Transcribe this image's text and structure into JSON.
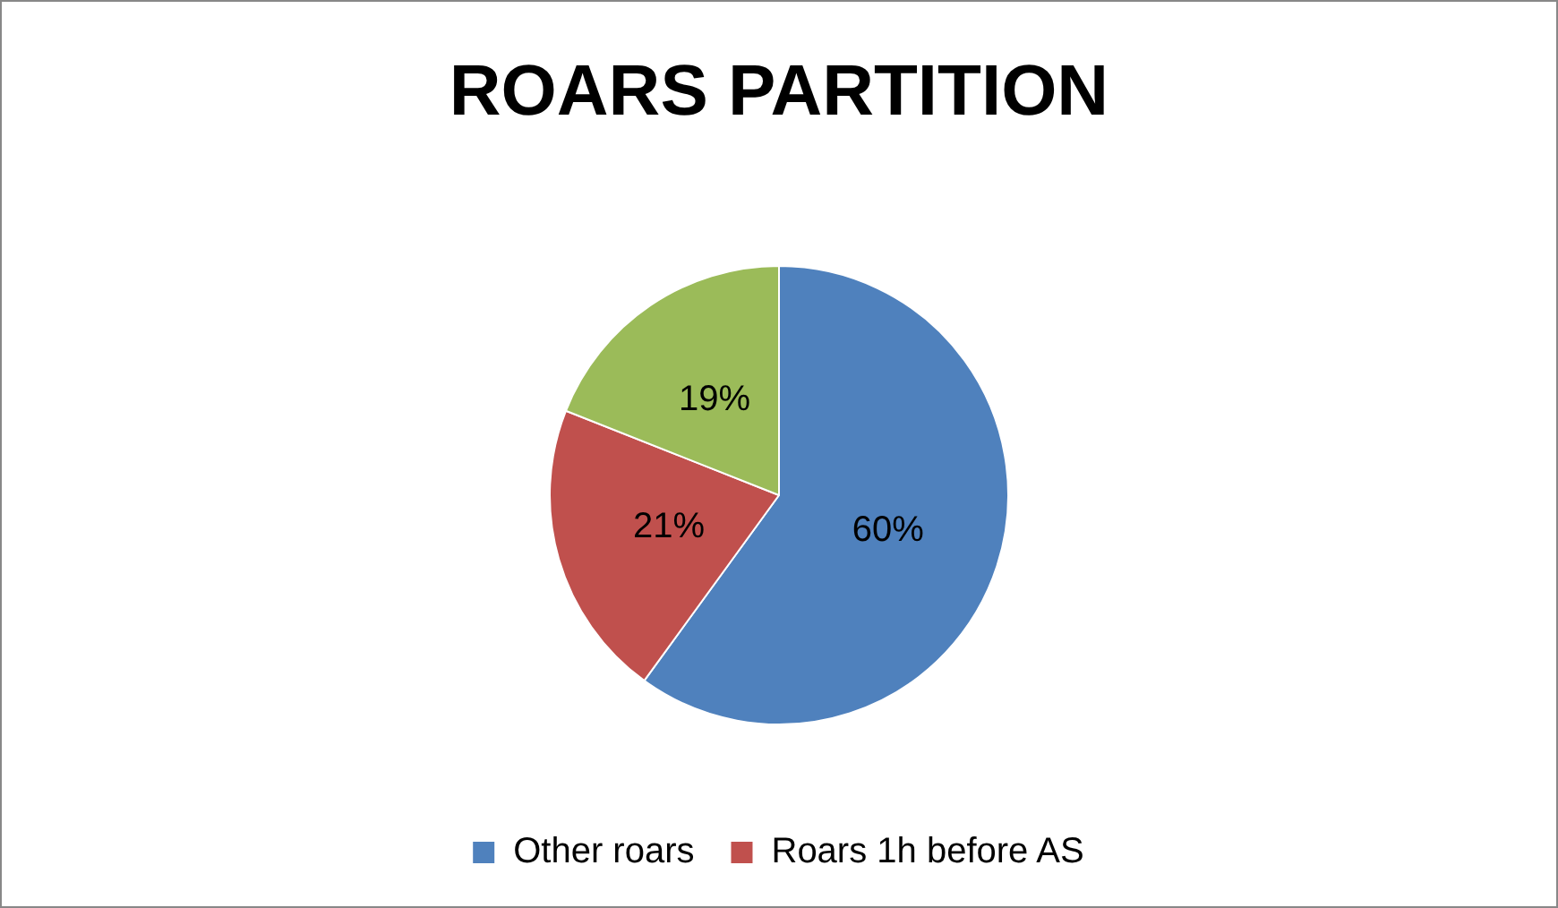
{
  "chart_data": {
    "type": "pie",
    "title": "ROARS PARTITION",
    "categories": [
      "Other roars",
      "Roars 1h before AS",
      null
    ],
    "values": [
      60,
      21,
      19
    ],
    "colors": [
      "#4f81bd",
      "#c0504d",
      "#9bbb59"
    ],
    "value_labels": [
      "60%",
      "21%",
      "19%"
    ],
    "legend": "bottom"
  }
}
